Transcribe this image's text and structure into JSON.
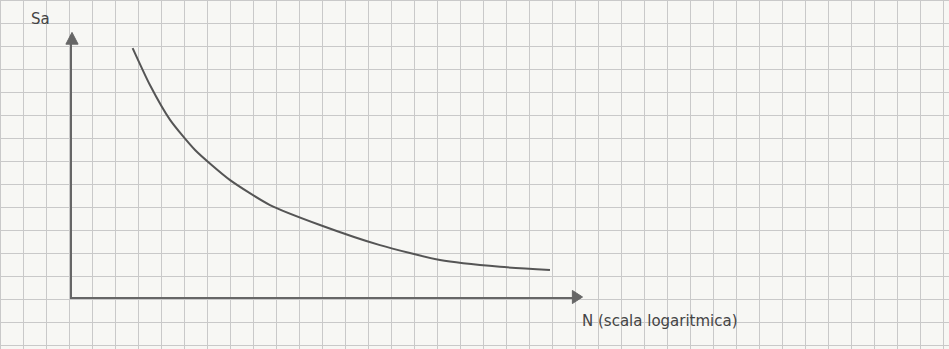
{
  "chart_data": {
    "type": "line",
    "x_label": "N (scala logaritmica)",
    "y_label": "Sa",
    "x": [
      5.2,
      8.3,
      14.4,
      28.4,
      73,
      218,
      849,
      4340,
      22200,
      113500,
      442000
    ],
    "values": [
      9.5,
      8.1,
      6.76,
      5.61,
      4.47,
      3.51,
      2.75,
      1.98,
      1.41,
      1.15,
      1.03
    ],
    "color": "#555555",
    "log": "x",
    "xlim": [
      1,
      1000000
    ],
    "ylim": [
      0,
      10
    ],
    "tick_labels": false
  }
}
